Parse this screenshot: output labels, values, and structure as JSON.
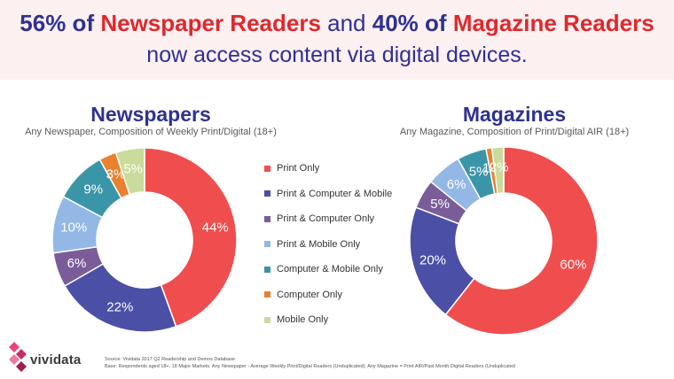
{
  "headline": {
    "p1": "56% of",
    "p2": "Newspaper Readers",
    "p3": "and",
    "p4": "40% of",
    "p5": "Magazine Readers",
    "line2": "now access content via digital devices."
  },
  "colors": {
    "Print Only": "#f04e4e",
    "Print & Computer & Mobile": "#4b4fa6",
    "Print & Computer Only": "#7a5c99",
    "Print & Mobile Only": "#93b8e6",
    "Computer & Mobile Only": "#3b95a8",
    "Computer Only": "#e9812e",
    "Mobile Only": "#c9dc9b"
  },
  "legend": [
    "Print Only",
    "Print & Computer & Mobile",
    "Print & Computer Only",
    "Print & Mobile Only",
    "Computer & Mobile Only",
    "Computer Only",
    "Mobile Only"
  ],
  "chart_data": [
    {
      "type": "pie",
      "title": "Newspapers",
      "subtitle": "Any Newspaper, Composition of Weekly Print/Digital (18+)",
      "categories": [
        "Print Only",
        "Print & Computer & Mobile",
        "Print & Computer Only",
        "Print & Mobile Only",
        "Computer & Mobile Only",
        "Computer Only",
        "Mobile Only"
      ],
      "values": [
        44,
        22,
        6,
        10,
        9,
        3,
        5
      ],
      "labels": [
        "44%",
        "22%",
        "6%",
        "10%",
        "9%",
        "3%",
        "5%"
      ]
    },
    {
      "type": "pie",
      "title": "Magazines",
      "subtitle": "Any Magazine, Composition of Print/Digital AIR (18+)",
      "categories": [
        "Print Only",
        "Print & Computer & Mobile",
        "Print & Computer Only",
        "Print & Mobile Only",
        "Computer & Mobile Only",
        "Computer Only",
        "Mobile Only"
      ],
      "values": [
        60,
        20,
        5,
        6,
        5,
        1,
        2
      ],
      "labels": [
        "60%",
        "20%",
        "5%",
        "6%",
        "5%",
        "1%",
        "2%"
      ]
    }
  ],
  "footnote": {
    "line1": "Source: Vividata 2017 Q2 Readership and Demos Database",
    "line2": "Base: Respondents aged 18+, 18 Major Markets, Any Newspaper - Average Weekly Print/Digital Readers (Unduplicated); Any Magazine = Print AIR/Past Month Digital Readers (Unduplicated"
  },
  "logo": {
    "text": "vividata",
    "icon": "vividata-diamond-logo-icon"
  }
}
